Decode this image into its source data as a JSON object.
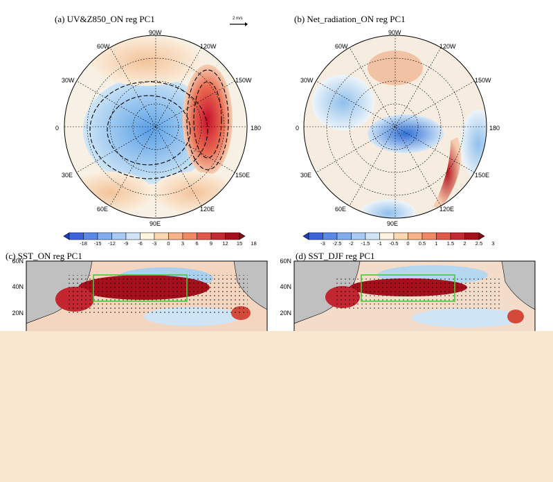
{
  "panels": {
    "a": {
      "title": "(a) UV&Z850_ON reg PC1",
      "vector_ref": "2 m/s",
      "lon_labels": {
        "90W": "90W",
        "120W": "120W",
        "150W": "150W",
        "180": "180",
        "150E": "150E",
        "120E": "120E",
        "90E": "90E",
        "60E": "60E",
        "30E": "30E",
        "0": "0",
        "30W": "30W",
        "60W": "60W"
      },
      "colorbar": [
        "-18",
        "-15",
        "-12",
        "-9",
        "-6",
        "-3",
        "0",
        "3",
        "6",
        "9",
        "12",
        "15",
        "18"
      ]
    },
    "b": {
      "title": "(b) Net_radiation_ON reg PC1",
      "lon_labels": {
        "90W": "90W",
        "120W": "120W",
        "150W": "150W",
        "180": "180",
        "150E": "150E",
        "120E": "120E",
        "90E": "90E",
        "60E": "60E",
        "30E": "30E",
        "0": "0",
        "30W": "30W",
        "60W": "60W"
      },
      "colorbar": [
        "-3",
        "-2.5",
        "-2",
        "-1.5",
        "-1",
        "-0.5",
        "0",
        "0.5",
        "1",
        "1.5",
        "2",
        "2.5",
        "3"
      ]
    },
    "c": {
      "title": "(c) SST_ON reg PC1",
      "lat_labels": [
        "60N",
        "40N",
        "20N"
      ]
    },
    "d": {
      "title": "(d) SST_DJF reg PC1",
      "lat_labels": [
        "60N",
        "40N",
        "20N"
      ]
    }
  },
  "colors": {
    "cover": "#f8e8d0",
    "land": "#c0c0c0",
    "box": "#44cc33",
    "negative": "#3a6fd8",
    "positive": "#b81420"
  }
}
